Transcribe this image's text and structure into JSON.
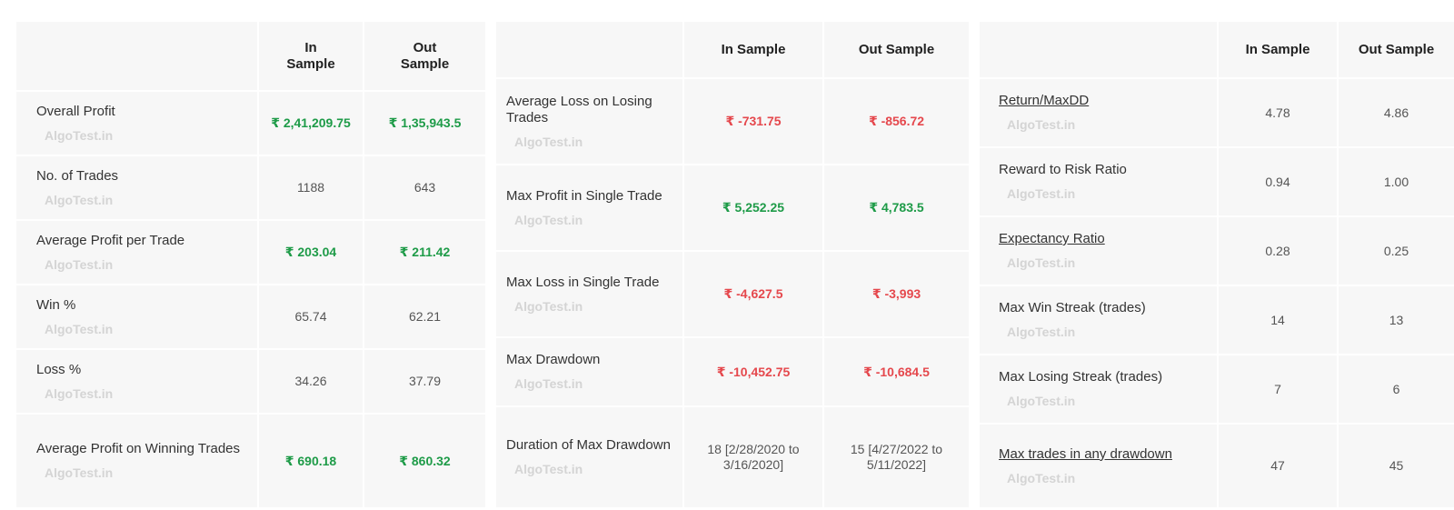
{
  "watermark": "AlgoTest.in",
  "colors": {
    "positive": "#1e9b48",
    "negative": "#e5484d",
    "neutral": "#555555"
  },
  "panels": [
    {
      "col_in": "In Sample",
      "col_out": "Out Sample",
      "rows": [
        {
          "label": "Overall Profit",
          "in": "₹ 2,41,209.75",
          "out": "₹ 1,35,943.5",
          "tone": "pos",
          "link": false
        },
        {
          "label": "No. of Trades",
          "in": "1188",
          "out": "643",
          "tone": "",
          "link": false
        },
        {
          "label": "Average Profit per Trade",
          "in": "₹ 203.04",
          "out": "₹ 211.42",
          "tone": "pos",
          "link": false
        },
        {
          "label": "Win %",
          "in": "65.74",
          "out": "62.21",
          "tone": "",
          "link": false
        },
        {
          "label": "Loss %",
          "in": "34.26",
          "out": "37.79",
          "tone": "",
          "link": false
        },
        {
          "label": "Average Profit on Winning Trades",
          "in": "₹ 690.18",
          "out": "₹ 860.32",
          "tone": "pos",
          "link": false
        }
      ]
    },
    {
      "col_in": "In Sample",
      "col_out": "Out Sample",
      "rows": [
        {
          "label": "Average Loss on Losing Trades",
          "in": "₹ -731.75",
          "out": "₹ -856.72",
          "tone": "neg",
          "link": false
        },
        {
          "label": "Max Profit in Single Trade",
          "in": "₹ 5,252.25",
          "out": "₹ 4,783.5",
          "tone": "pos",
          "link": false
        },
        {
          "label": "Max Loss in Single Trade",
          "in": "₹ -4,627.5",
          "out": "₹ -3,993",
          "tone": "neg",
          "link": false
        },
        {
          "label": "Max Drawdown",
          "in": "₹ -10,452.75",
          "out": "₹ -10,684.5",
          "tone": "neg",
          "link": false
        },
        {
          "label": "Duration of Max Drawdown",
          "in": "18 [2/28/2020 to 3/16/2020]",
          "out": "15 [4/27/2022 to 5/11/2022]",
          "tone": "",
          "link": false
        }
      ]
    },
    {
      "col_in": "In Sample",
      "col_out": "Out Sample",
      "rows": [
        {
          "label": "Return/MaxDD",
          "in": "4.78",
          "out": "4.86",
          "tone": "",
          "link": true
        },
        {
          "label": "Reward to Risk Ratio",
          "in": "0.94",
          "out": "1.00",
          "tone": "",
          "link": false
        },
        {
          "label": "Expectancy Ratio",
          "in": "0.28",
          "out": "0.25",
          "tone": "",
          "link": true
        },
        {
          "label": "Max Win Streak (trades)",
          "in": "14",
          "out": "13",
          "tone": "",
          "link": false
        },
        {
          "label": "Max Losing Streak (trades)",
          "in": "7",
          "out": "6",
          "tone": "",
          "link": false
        },
        {
          "label": "Max trades in any drawdown",
          "in": "47",
          "out": "45",
          "tone": "",
          "link": true
        }
      ]
    }
  ]
}
